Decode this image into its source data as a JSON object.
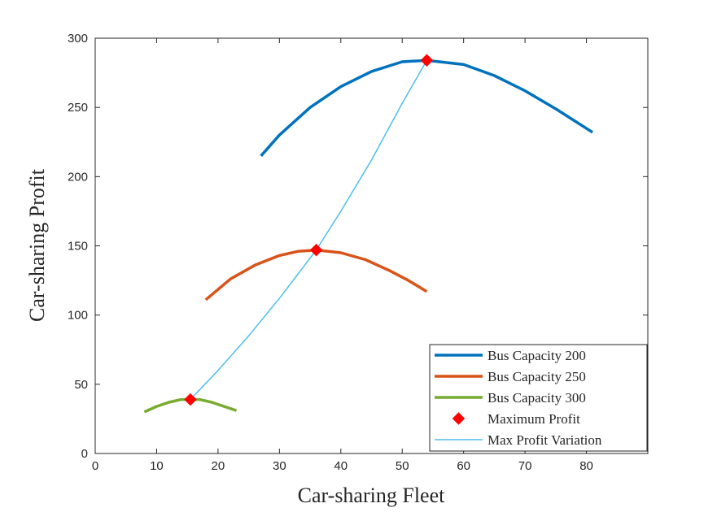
{
  "chart_data": {
    "type": "line",
    "title": "",
    "xlabel": "Car-sharing Fleet",
    "ylabel": "Car-sharing Profit",
    "xlim": [
      0,
      90
    ],
    "ylim": [
      0,
      300
    ],
    "xticks": [
      0,
      10,
      20,
      30,
      40,
      50,
      60,
      70,
      80
    ],
    "yticks": [
      0,
      50,
      100,
      150,
      200,
      250,
      300
    ],
    "grid": false,
    "legend_position": "bottom-right",
    "series": [
      {
        "name": "Bus Capacity 200",
        "color": "#0072BD",
        "style": "thick-line",
        "x": [
          27,
          30,
          35,
          40,
          45,
          50,
          54,
          60,
          65,
          70,
          75,
          81
        ],
        "y": [
          215,
          230,
          250,
          265,
          276,
          283,
          284,
          281,
          273,
          262,
          249,
          232
        ]
      },
      {
        "name": "Bus Capacity 250",
        "color": "#D95319",
        "style": "thick-line",
        "x": [
          18,
          22,
          26,
          30,
          33,
          36,
          40,
          44,
          48,
          51,
          54
        ],
        "y": [
          111,
          126,
          136,
          143,
          146,
          147,
          145,
          140,
          132,
          125,
          117
        ]
      },
      {
        "name": "Bus Capacity 300",
        "color": "#77AC30",
        "style": "thick-line",
        "x": [
          8,
          10,
          12,
          14,
          15.5,
          17,
          19,
          21,
          23
        ],
        "y": [
          30,
          34,
          37,
          39,
          39,
          39,
          37,
          34,
          31
        ]
      },
      {
        "name": "Maximum Profit",
        "color": "#FF0000",
        "style": "diamond-marker",
        "x": [
          54,
          36,
          15.5
        ],
        "y": [
          284,
          147,
          39
        ]
      },
      {
        "name": "Max Profit Variation",
        "color": "#4DBEEE",
        "style": "thin-line",
        "x": [
          15.5,
          20,
          25,
          30,
          36,
          40,
          45,
          50,
          54
        ],
        "y": [
          39,
          60,
          85,
          112,
          147,
          175,
          212,
          253,
          284
        ]
      }
    ]
  }
}
